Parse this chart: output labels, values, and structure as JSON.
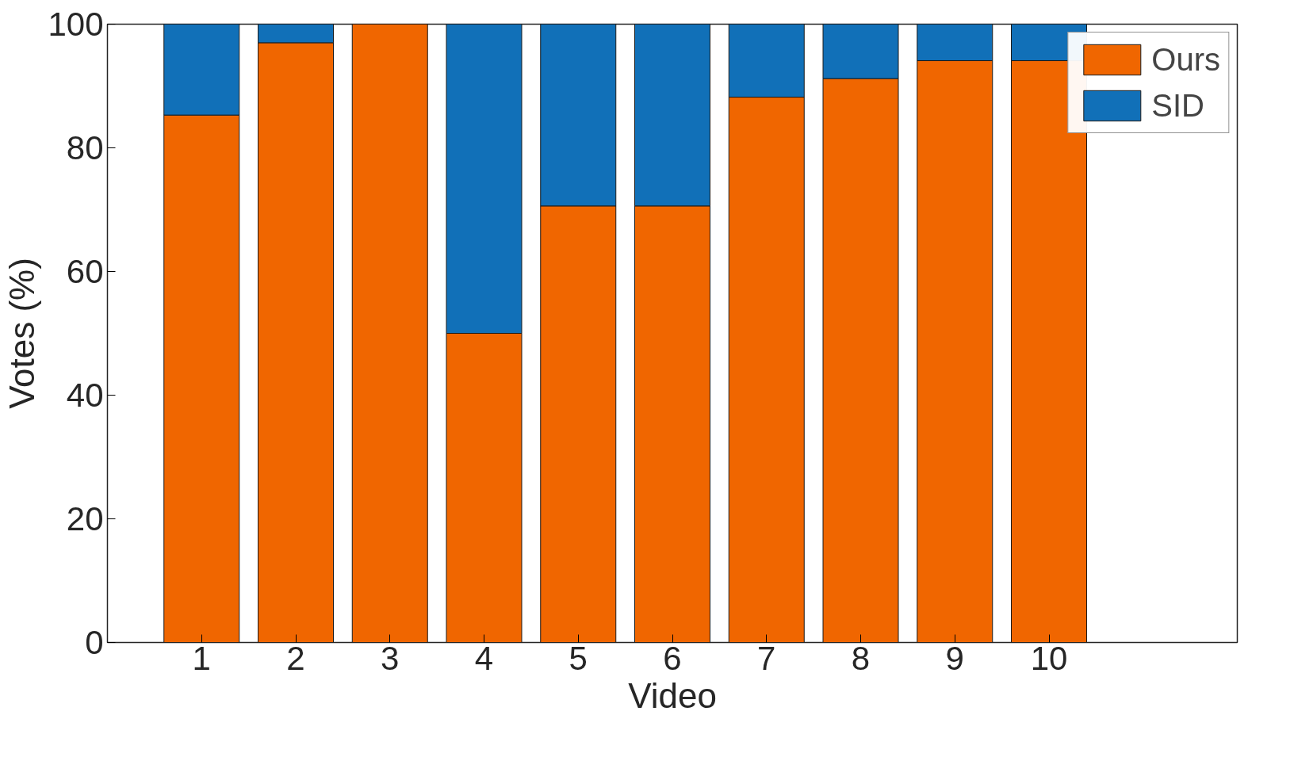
{
  "chart_data": {
    "type": "bar",
    "stacked": true,
    "xlabel": "Video",
    "ylabel": "Votes (%)",
    "x": [
      1,
      2,
      3,
      4,
      5,
      6,
      7,
      8,
      9,
      10
    ],
    "xlim": [
      0,
      12
    ],
    "xticks": [
      1,
      2,
      3,
      4,
      5,
      6,
      7,
      8,
      9,
      10
    ],
    "ylim": [
      0,
      100
    ],
    "yticks": [
      0,
      20,
      40,
      60,
      80,
      100
    ],
    "series": [
      {
        "name": "Ours",
        "color": "#f06600",
        "values": [
          85.3,
          97,
          100,
          50,
          70.6,
          70.6,
          88.2,
          91.2,
          94.1,
          94.1
        ]
      },
      {
        "name": "SID",
        "color": "#1170b8",
        "values": [
          14.7,
          3,
          null,
          50,
          29.4,
          29.4,
          11.8,
          8.8,
          5.9,
          5.9
        ]
      }
    ],
    "legend": "top right",
    "grid": false
  }
}
